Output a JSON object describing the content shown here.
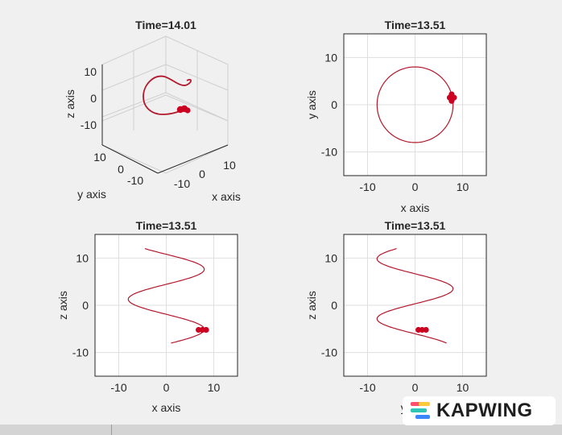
{
  "chart_data": [
    {
      "type": "line",
      "projection": "3d",
      "title": "Time=14.01",
      "xlabel": "x axis",
      "ylabel": "y axis",
      "zlabel": "z axis",
      "xlim": [
        -15,
        15
      ],
      "ylim": [
        -15,
        15
      ],
      "zlim": [
        -15,
        15
      ],
      "xticks": [
        -10,
        0,
        10
      ],
      "yticks": [
        -10,
        0,
        10
      ],
      "zticks": [
        -10,
        0,
        10
      ],
      "grid": true,
      "series": [
        {
          "values": "helix x=8cos(t), y=8sin(t), z from 12 to -5"
        }
      ],
      "markers": [
        {
          "x": 6.8,
          "y": 4.3,
          "z": -5.1
        },
        {
          "x": 8.0,
          "y": 2.6,
          "z": -5.1
        },
        {
          "x": 7.5,
          "y": 3.6,
          "z": -5.1
        }
      ]
    },
    {
      "type": "line",
      "title": "Time=13.51",
      "xlabel": "x axis",
      "ylabel": "y axis",
      "xlim": [
        -15,
        15
      ],
      "ylim": [
        -15,
        15
      ],
      "xticks": [
        -10,
        0,
        10
      ],
      "yticks": [
        -10,
        0,
        10
      ],
      "grid": true,
      "series": [
        {
          "values": "circle radius 8 centered at (0,0)"
        }
      ],
      "markers": [
        {
          "x": 7.7,
          "y": 2.2
        },
        {
          "x": 7.7,
          "y": 0.8
        },
        {
          "x": 7.3,
          "y": 1.5
        },
        {
          "x": 8.2,
          "y": 1.5
        }
      ]
    },
    {
      "type": "line",
      "title": "Time=13.51",
      "xlabel": "x axis",
      "ylabel": "z axis",
      "xlim": [
        -15,
        15
      ],
      "ylim": [
        -15,
        15
      ],
      "xticks": [
        -10,
        0,
        10
      ],
      "yticks": [
        -10,
        0,
        10
      ],
      "grid": true,
      "series": [
        {
          "x_start": -4.5,
          "z_start": 12,
          "x_end": 0,
          "z_end": -8
        }
      ],
      "markers": [
        {
          "x": 6.8,
          "y": -5.2
        },
        {
          "x": 7.6,
          "y": -5.2
        },
        {
          "x": 8.4,
          "y": -5.2
        }
      ]
    },
    {
      "type": "line",
      "title": "Time=13.51",
      "xlabel": "y axis",
      "ylabel": "z axis",
      "xlim": [
        -15,
        15
      ],
      "ylim": [
        -15,
        15
      ],
      "xticks": [
        -10,
        0,
        10
      ],
      "yticks": [
        -10,
        0,
        10
      ],
      "grid": true,
      "series": [
        {
          "y_start": -7,
          "z_start": 12,
          "y_end": 8,
          "z_end": -8
        }
      ],
      "markers": [
        {
          "x": 0.7,
          "y": -5.2
        },
        {
          "x": 1.5,
          "y": -5.2
        },
        {
          "x": 2.3,
          "y": -5.2
        }
      ]
    }
  ],
  "watermark": {
    "text": "KAPWING",
    "colors": [
      "#ff4d6d",
      "#ffc93c",
      "#2ec4b6",
      "#3a86ff"
    ]
  }
}
